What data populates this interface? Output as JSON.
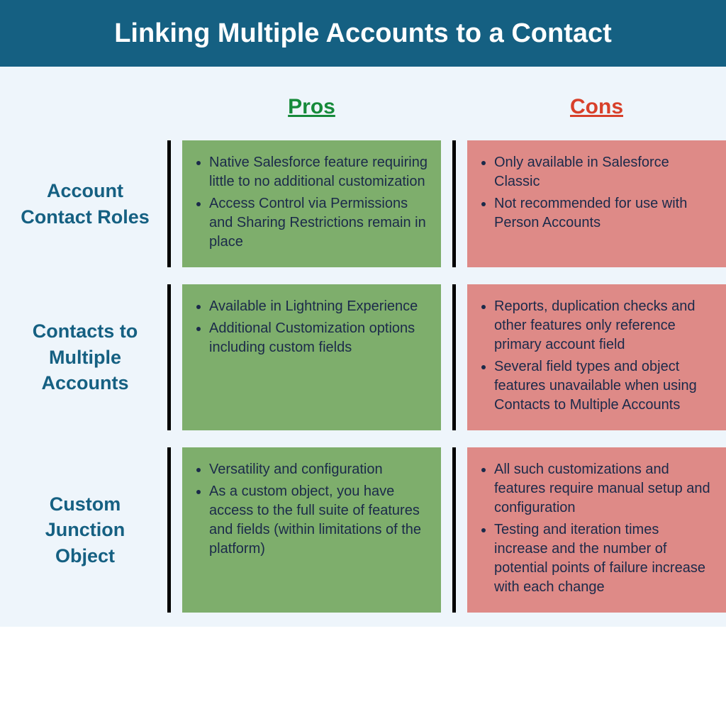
{
  "title": "Linking Multiple Accounts to a Contact",
  "colors": {
    "title_bg": "#156082",
    "title_text": "#ffffff",
    "body_bg": "#eef5fb",
    "pros_header": "#168a3a",
    "cons_header": "#d8402a",
    "row_label_text": "#156082",
    "cell_text": "#1b2a4a",
    "pros_cell_bg": "#7eae6c",
    "cons_cell_bg": "#de8a87",
    "rule": "#000000"
  },
  "typography": {
    "title_fontsize": 38,
    "header_fontsize": 30,
    "row_label_fontsize": 27,
    "cell_fontsize": 20
  },
  "layout": {
    "title_bar_height": 94
  },
  "columns": {
    "pros_label": "Pros",
    "cons_label": "Cons"
  },
  "rows": [
    {
      "label": "Account Contact Roles",
      "pros": [
        "Native Salesforce feature requiring little to no additional customization",
        "Access Control via Permissions and Sharing Restrictions remain in place"
      ],
      "cons": [
        "Only available in Salesforce Classic",
        "Not recommended for use with Person Accounts"
      ]
    },
    {
      "label": "Contacts to Multiple Accounts",
      "pros": [
        "Available in Lightning Experience",
        "Additional Customization options including custom fields"
      ],
      "cons": [
        "Reports, duplication checks and other features only reference primary account field",
        "Several field types and object features unavailable when using Contacts to Multiple Accounts"
      ]
    },
    {
      "label": "Custom Junction Object",
      "pros": [
        "Versatility and configuration",
        "As a custom object, you have access to the full suite of features and fields (within limitations of the platform)"
      ],
      "cons": [
        "All such customizations and features require manual setup and configuration",
        "Testing and iteration times increase and the number of potential points of failure increase with each change"
      ]
    }
  ]
}
